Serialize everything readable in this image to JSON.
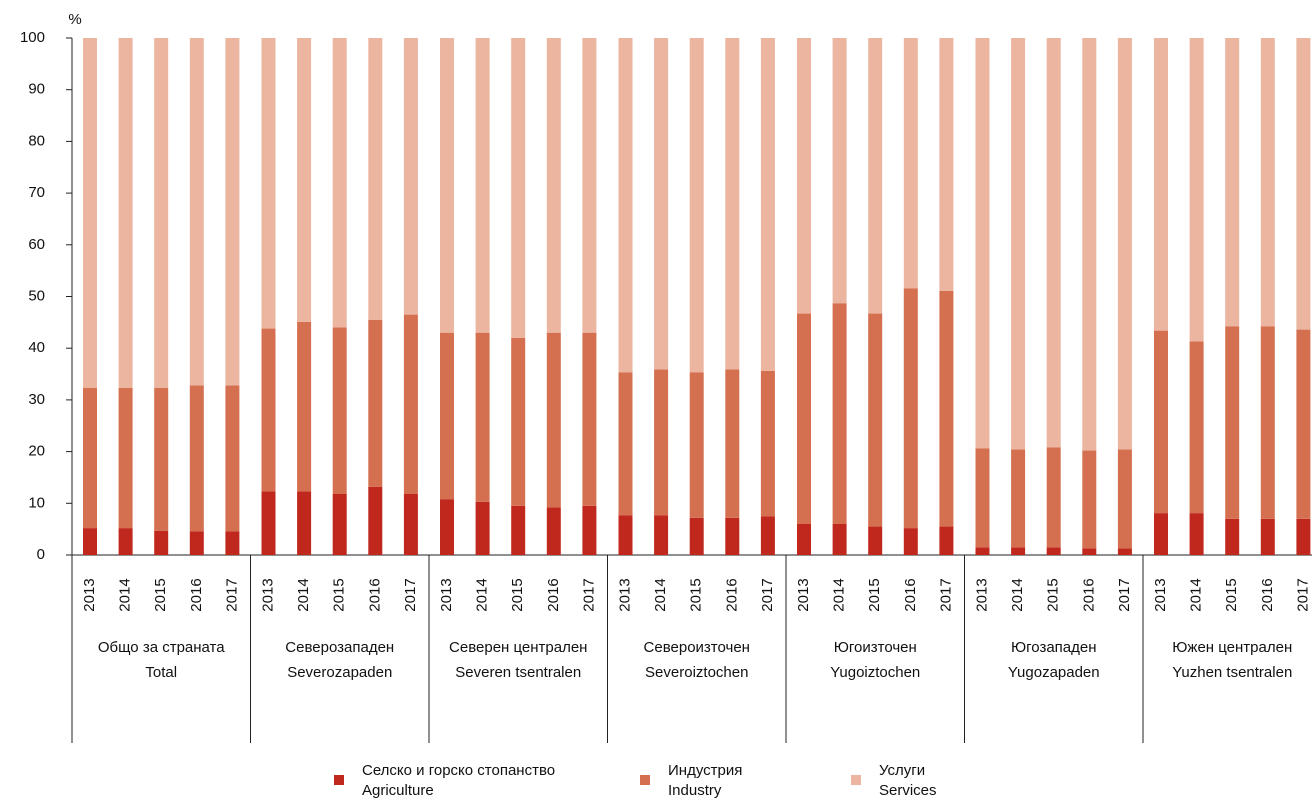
{
  "chart_data": {
    "type": "stacked_bar",
    "y_label": "%",
    "ylim": [
      0,
      100
    ],
    "yticks": [
      0,
      10,
      20,
      30,
      40,
      50,
      60,
      70,
      80,
      90,
      100
    ],
    "groups": [
      {
        "label": [
          "Общо за страната",
          "Total"
        ],
        "categories": [
          "2013",
          "2014",
          "2015",
          "2016",
          "2017"
        ]
      },
      {
        "label": [
          "Северозападен",
          "Severozapaden"
        ],
        "categories": [
          "2013",
          "2014",
          "2015",
          "2016",
          "2017"
        ]
      },
      {
        "label": [
          "Северен централен",
          "Severen tsentralen"
        ],
        "categories": [
          "2013",
          "2014",
          "2015",
          "2016",
          "2017"
        ]
      },
      {
        "label": [
          "Североизточен",
          "Severoiztochen"
        ],
        "categories": [
          "2013",
          "2014",
          "2015",
          "2016",
          "2017"
        ]
      },
      {
        "label": [
          "Югоизточен",
          "Yugoiztochen"
        ],
        "categories": [
          "2013",
          "2014",
          "2015",
          "2016",
          "2017"
        ]
      },
      {
        "label": [
          "Югозападен",
          "Yugozapaden"
        ],
        "categories": [
          "2013",
          "2014",
          "2015",
          "2016",
          "2017"
        ]
      },
      {
        "label": [
          "Южен централен",
          "Yuzhen tsentralen"
        ],
        "categories": [
          "2013",
          "2014",
          "2015",
          "2016",
          "2017"
        ]
      }
    ],
    "series": [
      {
        "name": [
          "Селско и горско стопанство",
          "Agriculture"
        ],
        "color": "#c0281e",
        "values": [
          [
            5.2,
            5.2,
            4.7,
            4.6,
            4.6
          ],
          [
            12.3,
            12.3,
            11.8,
            13.2,
            11.8
          ],
          [
            10.8,
            10.3,
            9.5,
            9.2,
            9.5
          ],
          [
            7.7,
            7.7,
            7.2,
            7.2,
            7.5
          ],
          [
            6.0,
            6.0,
            5.5,
            5.2,
            5.5
          ],
          [
            1.5,
            1.5,
            1.5,
            1.3,
            1.3
          ],
          [
            8.1,
            8.1,
            7.0,
            7.0,
            7.0
          ]
        ]
      },
      {
        "name": [
          "Индустрия",
          "Industry"
        ],
        "color": "#d4704f",
        "values": [
          [
            27.1,
            27.1,
            27.6,
            28.2,
            28.2
          ],
          [
            31.5,
            32.8,
            32.2,
            32.3,
            34.7
          ],
          [
            32.2,
            32.7,
            32.5,
            33.8,
            33.5
          ],
          [
            27.6,
            28.2,
            28.1,
            28.7,
            28.1
          ],
          [
            40.7,
            42.7,
            41.2,
            46.4,
            45.6
          ],
          [
            19.1,
            18.9,
            19.3,
            18.9,
            19.1
          ],
          [
            35.3,
            33.2,
            37.2,
            37.2,
            36.6
          ]
        ]
      },
      {
        "name": [
          "Услуги",
          "Services"
        ],
        "color": "#ebb59f",
        "values": [
          [
            67.7,
            67.7,
            67.7,
            67.2,
            67.2
          ],
          [
            56.2,
            54.9,
            56.0,
            54.5,
            53.5
          ],
          [
            57.0,
            57.0,
            58.0,
            57.0,
            57.0
          ],
          [
            64.7,
            64.1,
            64.7,
            64.1,
            64.4
          ],
          [
            53.3,
            51.3,
            53.3,
            48.4,
            48.9
          ],
          [
            79.4,
            79.6,
            79.2,
            79.8,
            79.6
          ],
          [
            56.6,
            58.7,
            55.8,
            55.8,
            56.4
          ]
        ]
      }
    ]
  }
}
